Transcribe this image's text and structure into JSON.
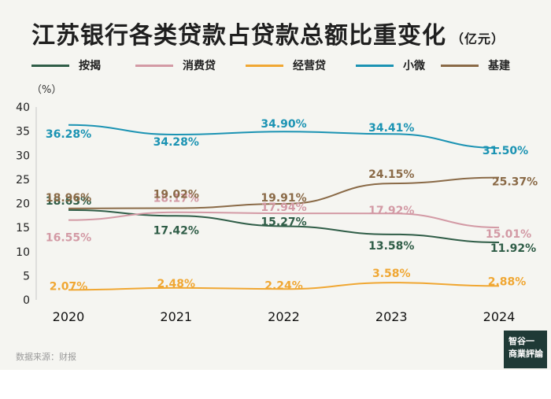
{
  "header": {
    "title": "江苏银行各类贷款占贷款总额比重变化",
    "unit": "（亿元）"
  },
  "source": "数据来源：财报",
  "logo": {
    "line1": "智谷一",
    "line2": "商業評論"
  },
  "chart_data": {
    "type": "line",
    "title": "江苏银行各类贷款占贷款总额比重变化",
    "ylabel": "（%）",
    "x": [
      "2020",
      "2021",
      "2022",
      "2023",
      "2024"
    ],
    "ylim": [
      0,
      40
    ],
    "yticks": [
      "0",
      "5",
      "10",
      "15",
      "20",
      "25",
      "30",
      "35",
      "40"
    ],
    "grid": false,
    "legend_position": "top",
    "series": [
      {
        "name": "按揭",
        "color": "#2f5d47",
        "values": [
          18.63,
          17.42,
          15.27,
          13.58,
          11.92
        ],
        "labels": [
          "18.63%",
          "17.42%",
          "15.27%",
          "13.58%",
          "11.92%"
        ]
      },
      {
        "name": "消费贷",
        "color": "#d39aa5",
        "values": [
          16.55,
          18.17,
          17.94,
          17.92,
          15.01
        ],
        "labels": [
          "16.55%",
          "18.17%",
          "17.94%",
          "17.92%",
          "15.01%"
        ]
      },
      {
        "name": "经营贷",
        "color": "#f0a733",
        "values": [
          2.07,
          2.48,
          2.24,
          3.58,
          2.88
        ],
        "labels": [
          "2.07%",
          "2.48%",
          "2.24%",
          "3.58%",
          "2.88%"
        ]
      },
      {
        "name": "小微",
        "color": "#1b93b3",
        "values": [
          36.28,
          34.28,
          34.9,
          34.41,
          31.5
        ],
        "labels": [
          "36.28%",
          "34.28%",
          "34.90%",
          "34.41%",
          "31.50%"
        ]
      },
      {
        "name": "基建",
        "color": "#8a6a47",
        "values": [
          18.96,
          19.02,
          19.91,
          24.15,
          25.37
        ],
        "labels": [
          "18.96%",
          "19.02%",
          "19.91%",
          "24.15%",
          "25.37%"
        ]
      }
    ]
  }
}
